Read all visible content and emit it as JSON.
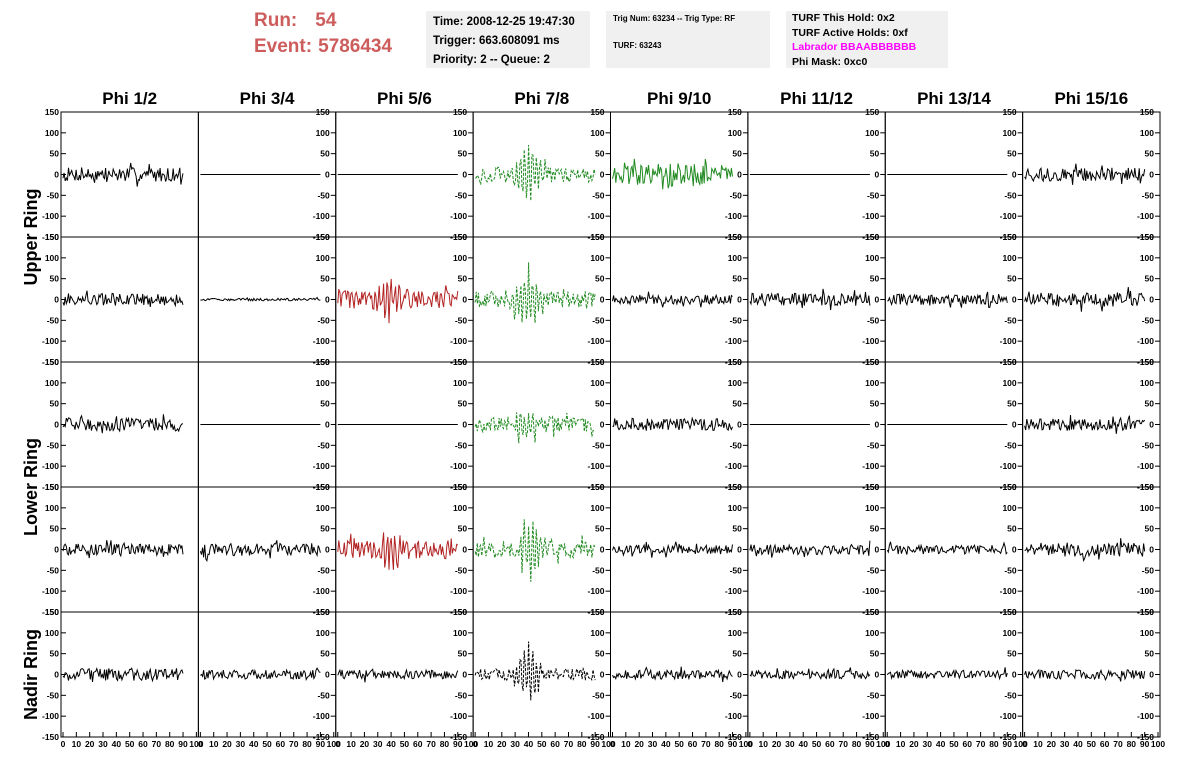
{
  "header": {
    "run_label": "Run:",
    "run_value": "54",
    "event_label": "Event:",
    "event_value": "5786434"
  },
  "time_box": {
    "time": "Time: 2008-12-25 19:47:30",
    "trigger": "Trigger: 663.608091 ms",
    "priority": "Priority: 2 -- Queue: 2"
  },
  "trig_box": {
    "trig_num": "Trig Num: 63234 -- Trig Type: RF",
    "turf": "TURF: 63243"
  },
  "turf_box": {
    "this_hold": "TURF This Hold: 0x2",
    "active_holds": "TURF Active Holds: 0xf",
    "labrador": "Labrador BBAABBBBBB",
    "phi_mask": "Phi Mask: 0xc0"
  },
  "colors": {
    "header_red": "#cd5c5c",
    "labrador_magenta": "#ff00ff",
    "trace_black": "#000000",
    "trace_green": "#228b22",
    "trace_red": "#b22222"
  },
  "chart_data": {
    "type": "line",
    "columns": [
      "Phi 1/2",
      "Phi 3/4",
      "Phi 5/6",
      "Phi 7/8",
      "Phi 9/10",
      "Phi 11/12",
      "Phi 13/14",
      "Phi 15/16"
    ],
    "rings": [
      "Upper Ring",
      "Upper Ring",
      "Lower Ring",
      "Lower Ring",
      "Nadir Ring"
    ],
    "ring_labels": [
      "Upper Ring",
      "Lower Ring",
      "Nadir Ring"
    ],
    "xlim": [
      0,
      100
    ],
    "x_ticks": [
      "0",
      "10",
      "20",
      "30",
      "40",
      "50",
      "60",
      "70",
      "80",
      "90",
      "100"
    ],
    "ylim": [
      -150,
      150
    ],
    "y_ticks": [
      "150",
      "100",
      "50",
      "0",
      "-50",
      "-100",
      "-150"
    ],
    "grid": false,
    "panels": [
      [
        {
          "color": "black",
          "style": "solid",
          "amp": 17,
          "burst": 0
        },
        {
          "color": "black",
          "style": "solid",
          "amp": 0,
          "burst": 0
        },
        {
          "color": "black",
          "style": "solid",
          "amp": 0,
          "burst": 0
        },
        {
          "color": "green",
          "style": "dashed",
          "amp": 18,
          "burst": 75
        },
        {
          "color": "green",
          "style": "solid",
          "amp": 25,
          "burst": 20
        },
        {
          "color": "black",
          "style": "solid",
          "amp": 0,
          "burst": 0
        },
        {
          "color": "black",
          "style": "solid",
          "amp": 0,
          "burst": 0
        },
        {
          "color": "black",
          "style": "solid",
          "amp": 16,
          "burst": 0
        }
      ],
      [
        {
          "color": "black",
          "style": "solid",
          "amp": 15,
          "burst": 0
        },
        {
          "color": "black",
          "style": "solid",
          "amp": 3,
          "burst": 0
        },
        {
          "color": "red",
          "style": "solid",
          "amp": 22,
          "burst": 45
        },
        {
          "color": "green",
          "style": "dashed",
          "amp": 20,
          "burst": 70
        },
        {
          "color": "black",
          "style": "solid",
          "amp": 11,
          "burst": 0
        },
        {
          "color": "black",
          "style": "solid",
          "amp": 15,
          "burst": 0
        },
        {
          "color": "black",
          "style": "solid",
          "amp": 13,
          "burst": 0
        },
        {
          "color": "black",
          "style": "solid",
          "amp": 17,
          "burst": 0
        }
      ],
      [
        {
          "color": "black",
          "style": "solid",
          "amp": 16,
          "burst": 0
        },
        {
          "color": "black",
          "style": "solid",
          "amp": 0,
          "burst": 0
        },
        {
          "color": "black",
          "style": "solid",
          "amp": 0,
          "burst": 0
        },
        {
          "color": "green",
          "style": "dashed",
          "amp": 18,
          "burst": 55
        },
        {
          "color": "black",
          "style": "solid",
          "amp": 15,
          "burst": 0
        },
        {
          "color": "black",
          "style": "solid",
          "amp": 0,
          "burst": 0
        },
        {
          "color": "black",
          "style": "solid",
          "amp": 0,
          "burst": 0
        },
        {
          "color": "black",
          "style": "solid",
          "amp": 14,
          "burst": 0
        }
      ],
      [
        {
          "color": "black",
          "style": "solid",
          "amp": 13,
          "burst": 0
        },
        {
          "color": "black",
          "style": "solid",
          "amp": 15,
          "burst": 0
        },
        {
          "color": "red",
          "style": "solid",
          "amp": 22,
          "burst": 50
        },
        {
          "color": "green",
          "style": "dashed",
          "amp": 20,
          "burst": 65
        },
        {
          "color": "black",
          "style": "solid",
          "amp": 11,
          "burst": 0
        },
        {
          "color": "black",
          "style": "solid",
          "amp": 12,
          "burst": 0
        },
        {
          "color": "black",
          "style": "solid",
          "amp": 11,
          "burst": 0
        },
        {
          "color": "black",
          "style": "solid",
          "amp": 17,
          "burst": 0
        }
      ],
      [
        {
          "color": "black",
          "style": "solid",
          "amp": 15,
          "burst": 0
        },
        {
          "color": "black",
          "style": "solid",
          "amp": 11,
          "burst": 0
        },
        {
          "color": "black",
          "style": "solid",
          "amp": 11,
          "burst": 0
        },
        {
          "color": "black",
          "style": "dashed",
          "amp": 14,
          "burst": 70
        },
        {
          "color": "black",
          "style": "solid",
          "amp": 11,
          "burst": 0
        },
        {
          "color": "black",
          "style": "solid",
          "amp": 10,
          "burst": 0
        },
        {
          "color": "black",
          "style": "solid",
          "amp": 10,
          "burst": 0
        },
        {
          "color": "black",
          "style": "solid",
          "amp": 11,
          "burst": 0
        }
      ]
    ]
  }
}
